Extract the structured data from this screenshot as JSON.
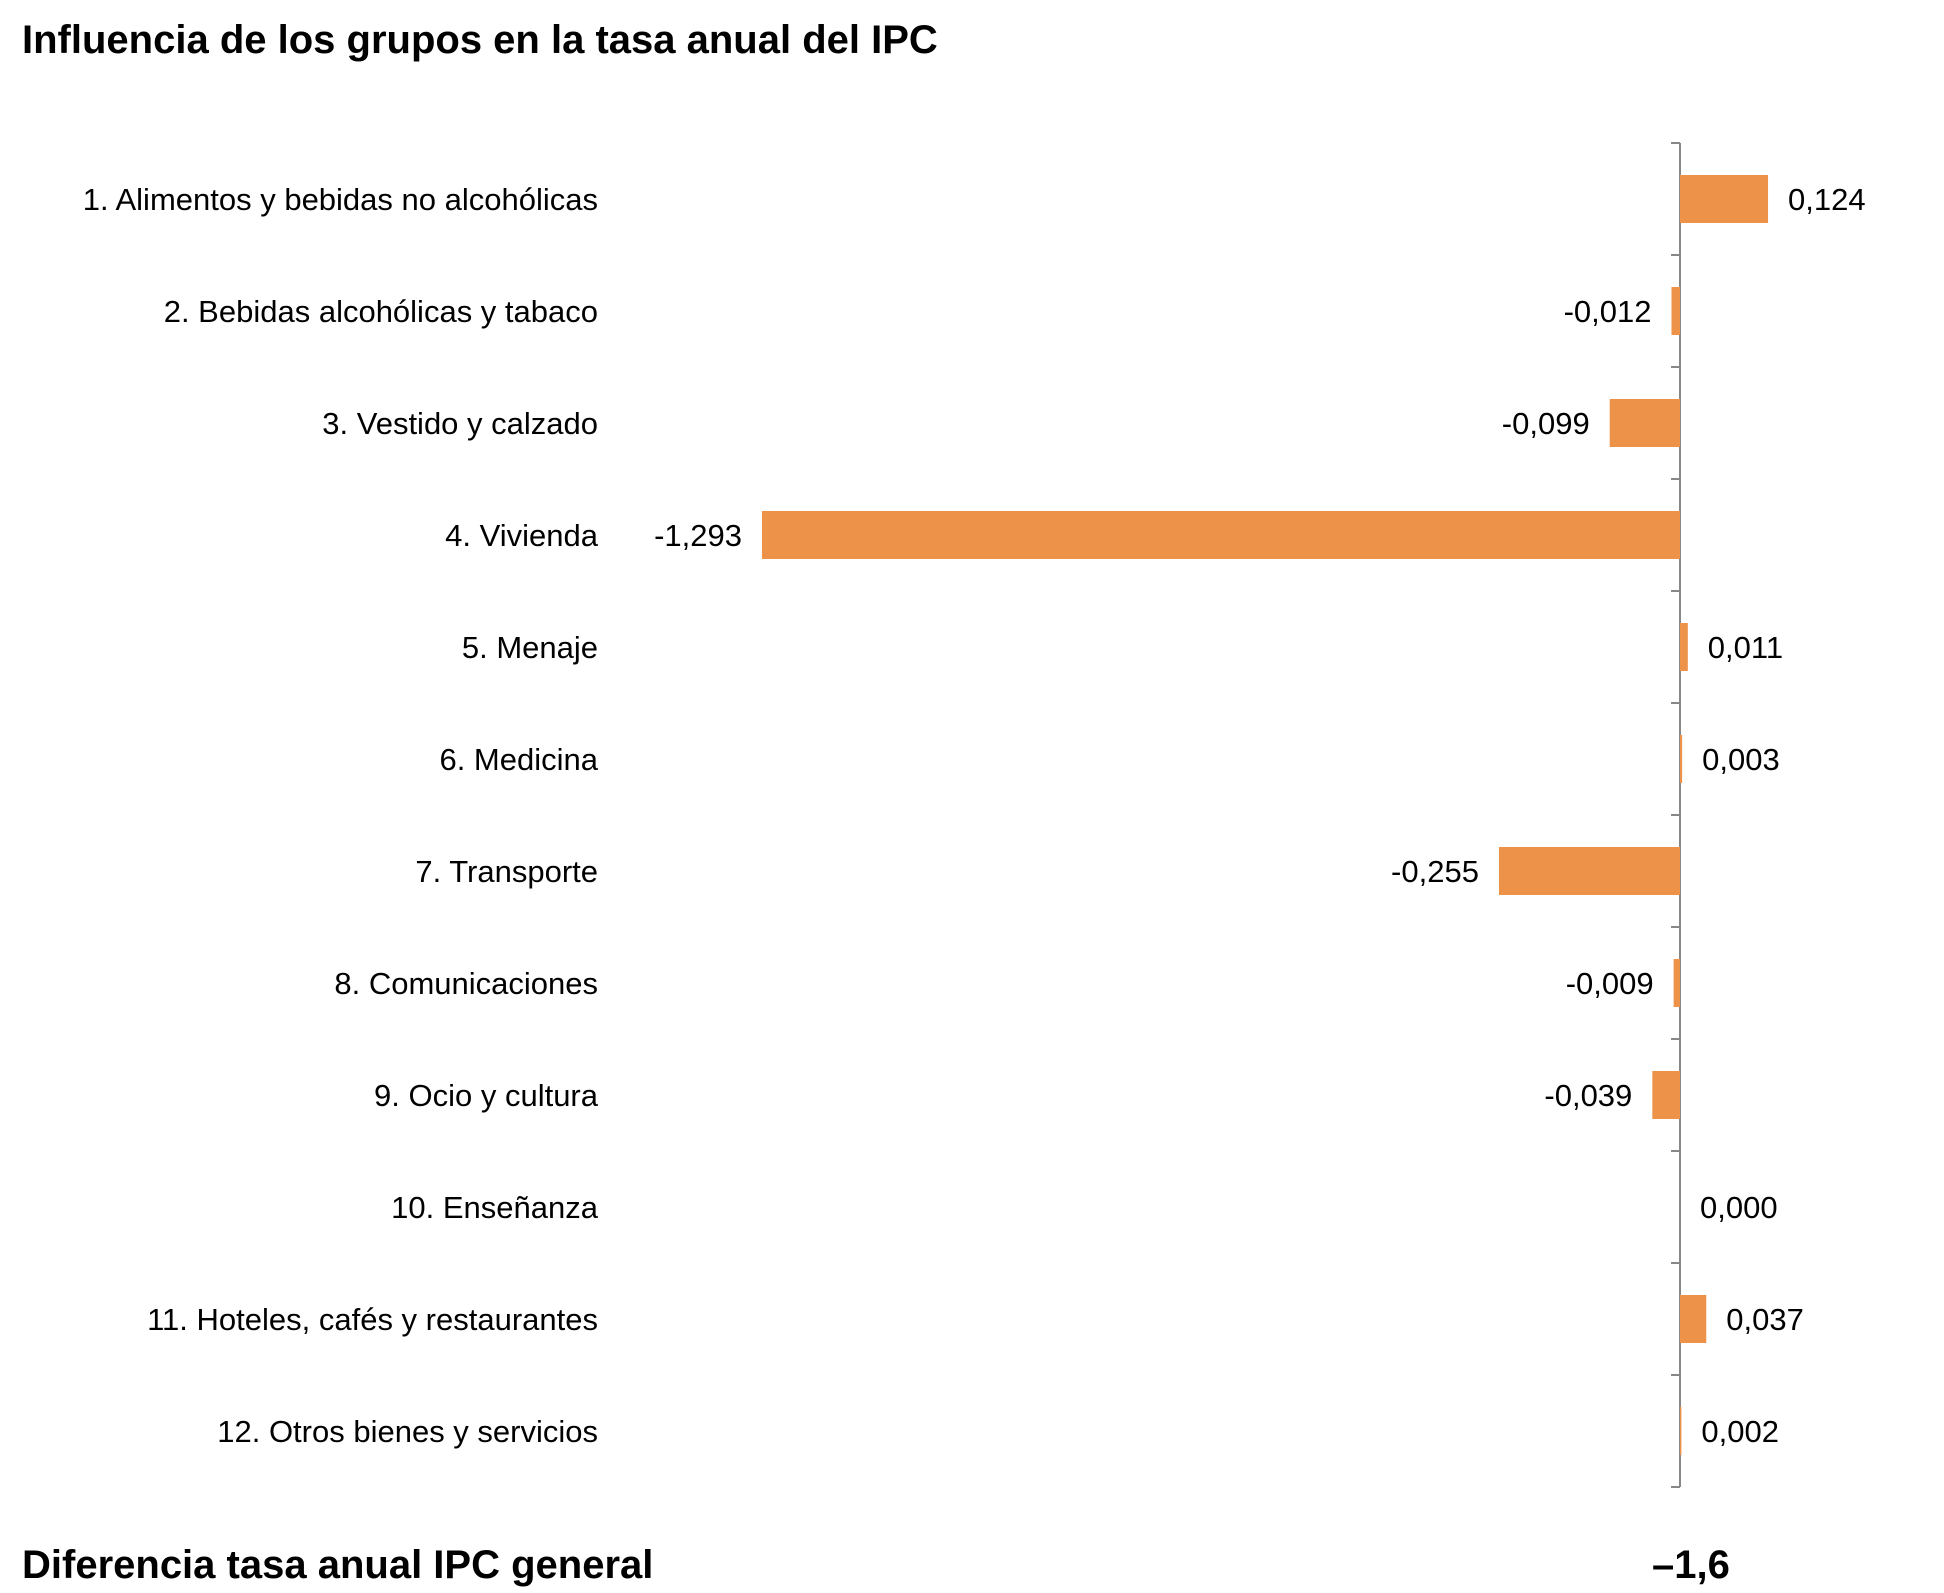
{
  "chart_data": {
    "type": "bar",
    "orientation": "horizontal",
    "title": "Influencia de los grupos en la tasa anual del IPC",
    "categories": [
      "1. Alimentos y bebidas no alcohólicas",
      "2. Bebidas alcohólicas y tabaco",
      "3. Vestido y calzado",
      "4. Vivienda",
      "5. Menaje",
      "6. Medicina",
      "7. Transporte",
      "8. Comunicaciones",
      "9. Ocio y cultura",
      "10. Enseñanza",
      "11. Hoteles, cafés y restaurantes",
      "12. Otros bienes y servicios"
    ],
    "values": [
      0.124,
      -0.012,
      -0.099,
      -1.293,
      0.011,
      0.003,
      -0.255,
      -0.009,
      -0.039,
      0.0,
      0.037,
      0.002
    ],
    "labels": [
      "0,124",
      "-0,012",
      "-0,099",
      "-1,293",
      "0,011",
      "0,003",
      "-0,255",
      "-0,009",
      "-0,039",
      "0,000",
      "0,037",
      "0,002"
    ],
    "bar_color": "#ED9249",
    "axis_color": "#888888",
    "grid": false,
    "footer": {
      "label": "Diferencia tasa anual IPC general",
      "value": "–1,6"
    }
  }
}
